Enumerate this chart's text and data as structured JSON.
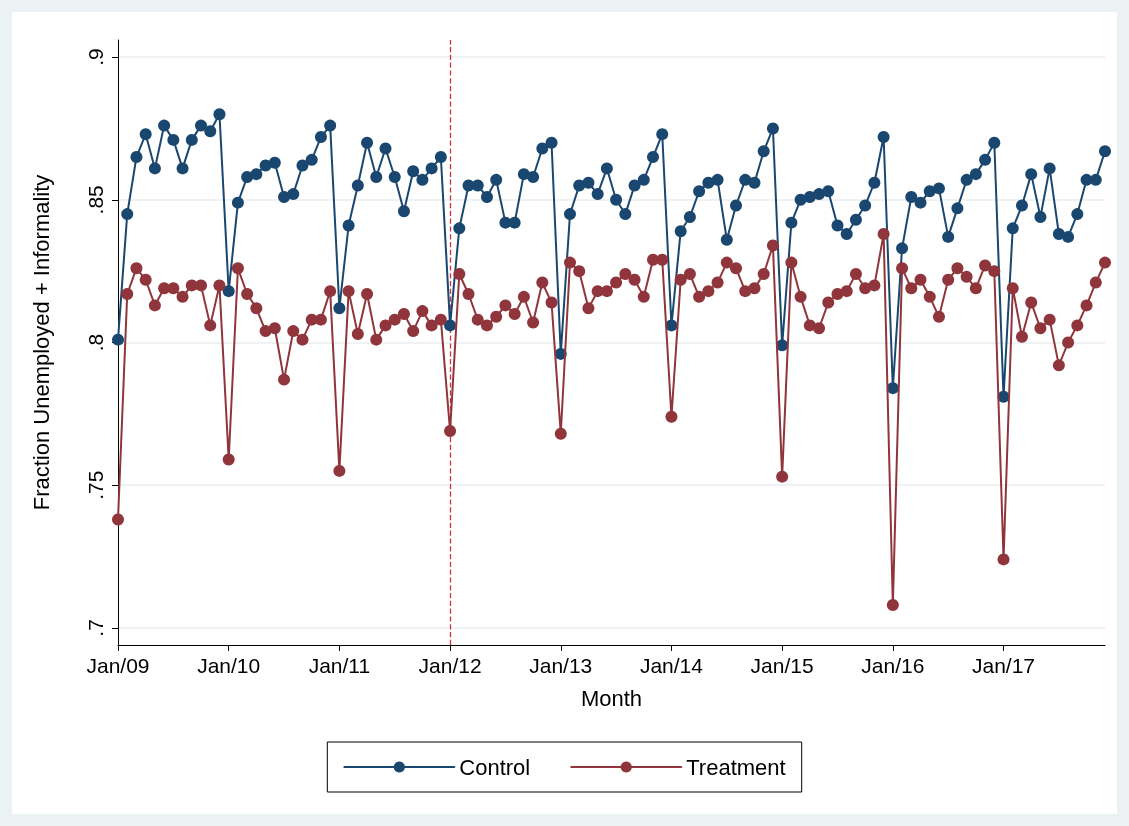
{
  "chart_data": {
    "type": "line",
    "xlabel": "Month",
    "ylabel": "Fraction Unemployed + Informality",
    "categories": [
      "Jan/09",
      null,
      null,
      null,
      null,
      null,
      null,
      null,
      null,
      null,
      null,
      null,
      "Jan/10",
      null,
      null,
      null,
      null,
      null,
      null,
      null,
      null,
      null,
      null,
      null,
      "Jan/11",
      null,
      null,
      null,
      null,
      null,
      null,
      null,
      null,
      null,
      null,
      null,
      "Jan/12",
      null,
      null,
      null,
      null,
      null,
      null,
      null,
      null,
      null,
      null,
      null,
      "Jan/13",
      null,
      null,
      null,
      null,
      null,
      null,
      null,
      null,
      null,
      null,
      null,
      "Jan/14",
      null,
      null,
      null,
      null,
      null,
      null,
      null,
      null,
      null,
      null,
      null,
      "Jan/15",
      null,
      null,
      null,
      null,
      null,
      null,
      null,
      null,
      null,
      null,
      null,
      "Jan/16",
      null,
      null,
      null,
      null,
      null,
      null,
      null,
      null,
      null,
      null,
      null,
      "Jan/17",
      null,
      null,
      null,
      null,
      null,
      null,
      null,
      null,
      null,
      null,
      null
    ],
    "series": [
      {
        "name": "Control",
        "color": "#1a476f",
        "values": [
          0.801,
          0.845,
          0.865,
          0.873,
          0.861,
          0.876,
          0.871,
          0.861,
          0.871,
          0.876,
          0.874,
          0.88,
          0.818,
          0.849,
          0.858,
          0.859,
          0.862,
          0.863,
          0.851,
          0.852,
          0.862,
          0.864,
          0.872,
          0.876,
          0.812,
          0.841,
          0.855,
          0.87,
          0.858,
          0.868,
          0.858,
          0.846,
          0.86,
          0.857,
          0.861,
          0.865,
          0.806,
          0.84,
          0.855,
          0.855,
          0.851,
          0.857,
          0.842,
          0.842,
          0.859,
          0.858,
          0.868,
          0.87,
          0.796,
          0.845,
          0.855,
          0.856,
          0.852,
          0.861,
          0.85,
          0.845,
          0.855,
          0.857,
          0.865,
          0.873,
          0.806,
          0.839,
          0.844,
          0.853,
          0.856,
          0.857,
          0.836,
          0.848,
          0.857,
          0.856,
          0.867,
          0.875,
          0.799,
          0.842,
          0.85,
          0.851,
          0.852,
          0.853,
          0.841,
          0.838,
          0.843,
          0.848,
          0.856,
          0.872,
          0.784,
          0.833,
          0.851,
          0.849,
          0.853,
          0.854,
          0.837,
          0.847,
          0.857,
          0.859,
          0.864,
          0.87,
          0.781,
          0.84,
          0.848,
          0.859,
          0.844,
          0.861,
          0.838,
          0.837,
          0.845,
          0.857,
          0.857,
          0.867
        ]
      },
      {
        "name": "Treatment",
        "color": "#90353b",
        "values": [
          0.738,
          0.817,
          0.826,
          0.822,
          0.813,
          0.819,
          0.819,
          0.816,
          0.82,
          0.82,
          0.806,
          0.82,
          0.759,
          0.826,
          0.817,
          0.812,
          0.804,
          0.805,
          0.787,
          0.804,
          0.801,
          0.808,
          0.808,
          0.818,
          0.755,
          0.818,
          0.803,
          0.817,
          0.801,
          0.806,
          0.808,
          0.81,
          0.804,
          0.811,
          0.806,
          0.808,
          0.769,
          0.824,
          0.817,
          0.808,
          0.806,
          0.809,
          0.813,
          0.81,
          0.816,
          0.807,
          0.821,
          0.814,
          0.768,
          0.828,
          0.825,
          0.812,
          0.818,
          0.818,
          0.821,
          0.824,
          0.822,
          0.816,
          0.829,
          0.829,
          0.774,
          0.822,
          0.824,
          0.816,
          0.818,
          0.821,
          0.828,
          0.826,
          0.818,
          0.819,
          0.824,
          0.834,
          0.753,
          0.828,
          0.816,
          0.806,
          0.805,
          0.814,
          0.817,
          0.818,
          0.824,
          0.819,
          0.82,
          0.838,
          0.708,
          0.826,
          0.819,
          0.822,
          0.816,
          0.809,
          0.822,
          0.826,
          0.823,
          0.819,
          0.827,
          0.825,
          0.724,
          0.819,
          0.802,
          0.814,
          0.805,
          0.808,
          0.792,
          0.8,
          0.806,
          0.813,
          0.821,
          0.828
        ]
      }
    ],
    "ylim": [
      0.694,
      0.906
    ],
    "yticks": [
      {
        "value": 0.7,
        "label": ".7"
      },
      {
        "value": 0.75,
        "label": ".75"
      },
      {
        "value": 0.8,
        "label": ".8"
      },
      {
        "value": 0.85,
        "label": ".85"
      },
      {
        "value": 0.9,
        "label": ".9"
      }
    ],
    "ref_lines": [
      {
        "axis": "x",
        "value": "Jan/12",
        "color": "#d0343f",
        "line_style": "dashed"
      }
    ],
    "grid": "y",
    "legend": "bottom",
    "marker": "circle",
    "line_style": "solid"
  }
}
